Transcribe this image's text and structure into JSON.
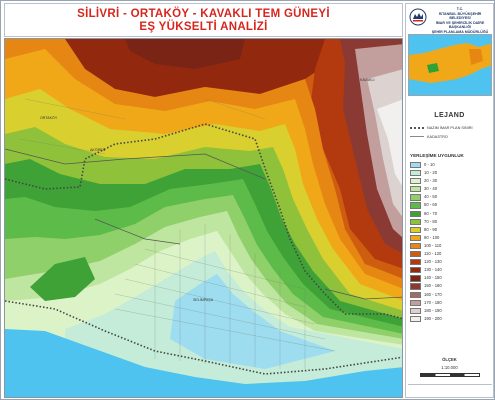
{
  "title": {
    "line1": "SİLİVRİ - ORTAKÖY - KAVAKLI TEM GÜNEYİ",
    "line2": "EŞ YÜKSELTİ ANALİZİ"
  },
  "institution": {
    "line1": "T.C.",
    "line2": "İSTANBUL BÜYÜKŞEHİR BELEDİYESİ",
    "line3": "İMAR VE ŞEHİRCİLİK DAİRE BAŞKANLIĞI",
    "line4": "ŞEHİR PLANLAMA MÜDÜRLÜĞÜ"
  },
  "map_labels": {
    "place_1": "ORTAKÖY",
    "place_2": "AKÖREN",
    "place_3": "SELİMPAŞA",
    "place_4": "KAVAKLI"
  },
  "legend": {
    "title": "LEJAND",
    "boundary_label": "NAZIM İMAR PLAN SINIRI",
    "kadastro_label": "KADASTRO",
    "classes_title": "YERLEŞİME UYGUNLUK",
    "classes": [
      {
        "label": "0 - 10",
        "color": "#9edcf0"
      },
      {
        "label": "10 - 20",
        "color": "#c4ecd8"
      },
      {
        "label": "20 - 30",
        "color": "#dcf3c8"
      },
      {
        "label": "30 - 40",
        "color": "#bfe6a0"
      },
      {
        "label": "40 - 50",
        "color": "#8fd06a"
      },
      {
        "label": "50 - 60",
        "color": "#5dbb4a"
      },
      {
        "label": "60 - 70",
        "color": "#3fa236"
      },
      {
        "label": "70 - 80",
        "color": "#8fc23a"
      },
      {
        "label": "80 - 90",
        "color": "#d9cf2f"
      },
      {
        "label": "90 - 100",
        "color": "#f0a818"
      },
      {
        "label": "100 - 110",
        "color": "#e58712"
      },
      {
        "label": "110 - 120",
        "color": "#cf5d10"
      },
      {
        "label": "120 - 130",
        "color": "#b23a0e"
      },
      {
        "label": "130 - 140",
        "color": "#92290f"
      },
      {
        "label": "140 - 150",
        "color": "#7a2416"
      },
      {
        "label": "150 - 160",
        "color": "#8a3a33"
      },
      {
        "label": "160 - 170",
        "color": "#a36a66"
      },
      {
        "label": "170 - 180",
        "color": "#c29f9c"
      },
      {
        "label": "180 - 190",
        "color": "#dcd2d0"
      },
      {
        "label": "190 - 200",
        "color": "#f2f0ef"
      }
    ]
  },
  "scale": {
    "title": "ÖLÇEK",
    "value": "1:10.000"
  },
  "colors": {
    "sea": "#4fc3ef",
    "title": "#d7261e"
  }
}
